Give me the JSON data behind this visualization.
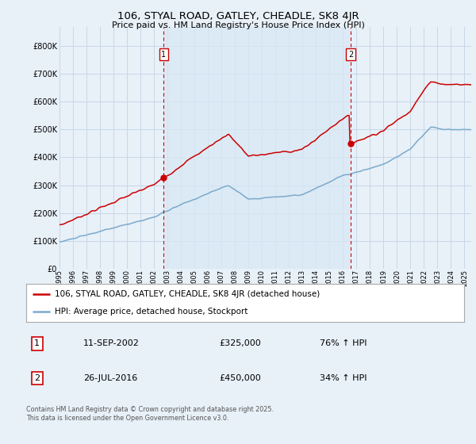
{
  "title": "106, STYAL ROAD, GATLEY, CHEADLE, SK8 4JR",
  "subtitle": "Price paid vs. HM Land Registry's House Price Index (HPI)",
  "legend_line1": "106, STYAL ROAD, GATLEY, CHEADLE, SK8 4JR (detached house)",
  "legend_line2": "HPI: Average price, detached house, Stockport",
  "sale1_date_str": "11-SEP-2002",
  "sale1_price": 325000,
  "sale1_pct": "76% ↑ HPI",
  "sale1_year": 2002.72,
  "sale2_date_str": "26-JUL-2016",
  "sale2_price": 450000,
  "sale2_pct": "34% ↑ HPI",
  "sale2_year": 2016.57,
  "red_color": "#cc0000",
  "blue_color": "#7aaacc",
  "fill_color": "#d8e8f5",
  "grid_color": "#c8d8e8",
  "background_color": "#e8f0f8",
  "plot_bg_color": "#e8f0f8",
  "footer": "Contains HM Land Registry data © Crown copyright and database right 2025.\nThis data is licensed under the Open Government Licence v3.0.",
  "ylim": [
    0,
    870000
  ],
  "yticks": [
    0,
    100000,
    200000,
    300000,
    400000,
    500000,
    600000,
    700000,
    800000
  ],
  "ytick_labels": [
    "£0",
    "£100K",
    "£200K",
    "£300K",
    "£400K",
    "£500K",
    "£600K",
    "£700K",
    "£800K"
  ]
}
